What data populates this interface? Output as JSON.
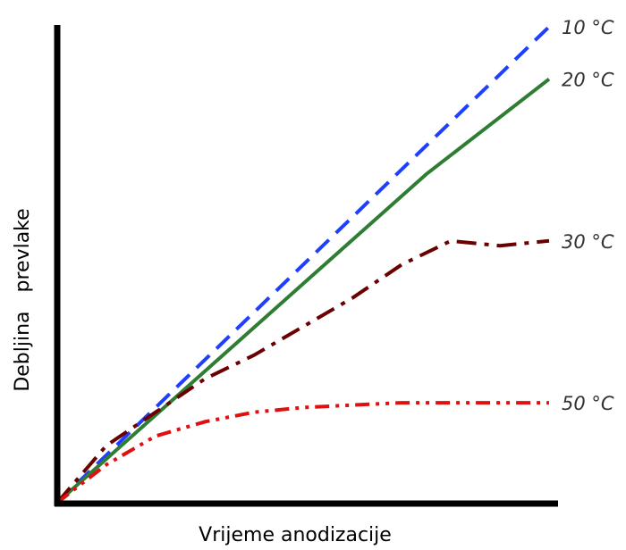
{
  "chart_data": {
    "type": "line",
    "title": "",
    "xlabel": "Vrijeme anodizacije",
    "ylabel": "Debljina   prevlake",
    "xlim": [
      0,
      100
    ],
    "ylim": [
      0,
      100
    ],
    "grid": false,
    "legend": "direct labels at line ends",
    "series": [
      {
        "name": "10 °C",
        "color": "#1f3fff",
        "dash": "dashed",
        "x": [
          0,
          100
        ],
        "y": [
          0,
          100
        ]
      },
      {
        "name": "20 °C",
        "color": "#2e7d32",
        "dash": "solid",
        "x": [
          0,
          25,
          50,
          75,
          85,
          100
        ],
        "y": [
          0,
          23,
          46,
          69,
          77,
          89
        ]
      },
      {
        "name": "30 °C",
        "color": "#6b0000",
        "dash": "dash-dot",
        "x": [
          0,
          10,
          20,
          30,
          40,
          50,
          60,
          70,
          80,
          90,
          100
        ],
        "y": [
          0,
          12,
          19,
          26,
          31,
          37,
          43,
          50,
          55,
          54,
          55
        ]
      },
      {
        "name": "50 °C",
        "color": "#e01010",
        "dash": "dash-dot-dot",
        "x": [
          0,
          10,
          20,
          30,
          40,
          50,
          60,
          70,
          80,
          90,
          100
        ],
        "y": [
          0,
          8,
          14,
          17,
          19,
          20,
          20.5,
          21,
          21,
          21,
          21
        ]
      }
    ]
  }
}
